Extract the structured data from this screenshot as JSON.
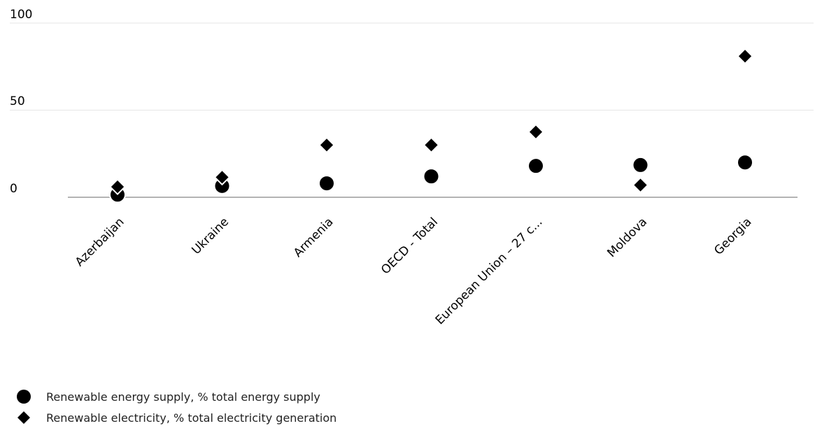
{
  "chart_data": {
    "type": "scatter",
    "categories": [
      "Azerbaijan",
      "Ukraine",
      "Armenia",
      "OECD - Total",
      "European Union – 27 c...",
      "Moldova",
      "Georgia"
    ],
    "series": [
      {
        "name": "Renewable energy supply, % total energy supply",
        "marker": "circle",
        "values": [
          1.5,
          6.5,
          8,
          12,
          18,
          18.5,
          20
        ]
      },
      {
        "name": "Renewable electricity, % total electricity generation",
        "marker": "diamond",
        "values": [
          6,
          11.5,
          30,
          30,
          37.5,
          7,
          81
        ]
      }
    ],
    "y_ticks": [
      "0",
      "50",
      "100"
    ],
    "ylim": [
      0,
      100
    ],
    "grid": true,
    "legend_position": "bottom-left",
    "colors": {
      "marker": "#000000",
      "marker_outline": "#ffffff",
      "grid": "#e6e6e6",
      "axis": "#b3b3b3"
    }
  }
}
